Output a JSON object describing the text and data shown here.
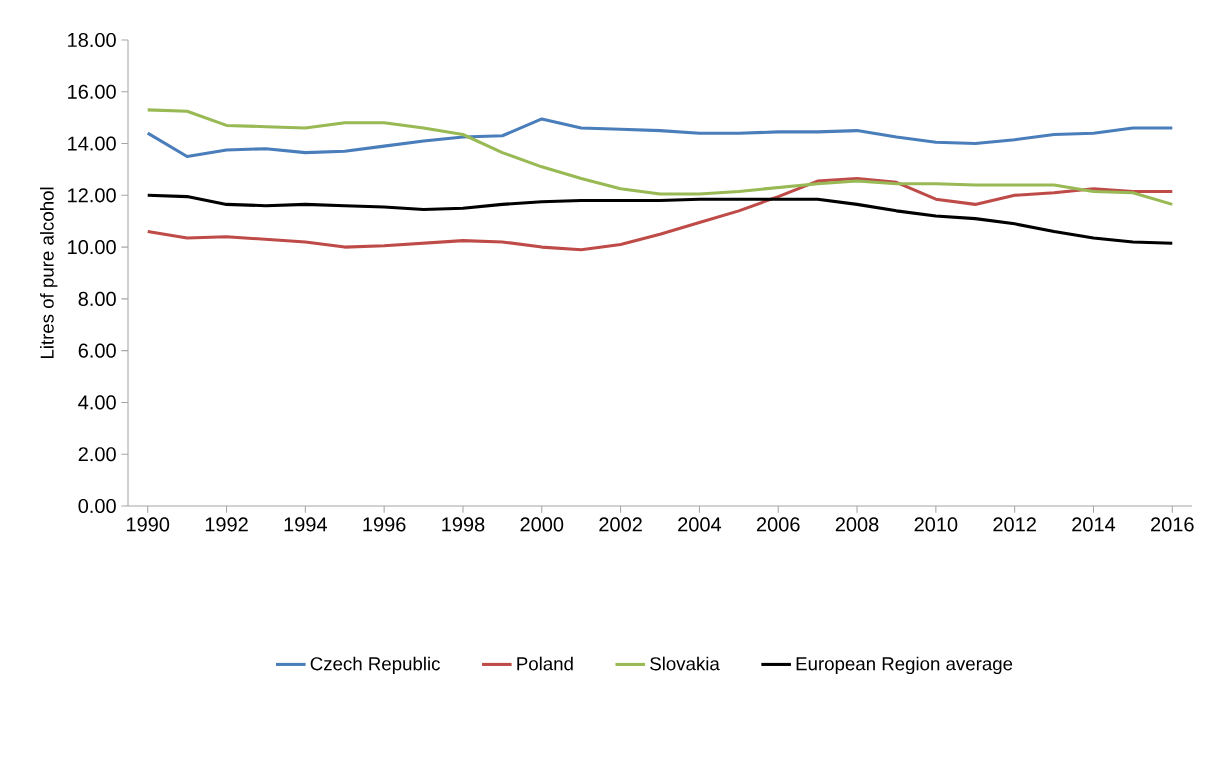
{
  "chart_data": {
    "type": "line",
    "ylabel": "Litres of pure alcohol",
    "x": [
      1990,
      1991,
      1992,
      1993,
      1994,
      1995,
      1996,
      1997,
      1998,
      1999,
      2000,
      2001,
      2002,
      2003,
      2004,
      2005,
      2006,
      2007,
      2008,
      2009,
      2010,
      2011,
      2012,
      2013,
      2014,
      2015,
      2016
    ],
    "series": [
      {
        "name": "Czech Republic",
        "color": "#4a7ebb",
        "values": [
          14.4,
          13.5,
          13.75,
          13.8,
          13.65,
          13.7,
          13.9,
          14.1,
          14.25,
          14.3,
          14.95,
          14.6,
          14.55,
          14.5,
          14.4,
          14.4,
          14.45,
          14.45,
          14.5,
          14.25,
          14.05,
          14.0,
          14.15,
          14.35,
          14.4,
          14.6,
          14.6
        ]
      },
      {
        "name": "Poland",
        "color": "#be4b48",
        "values": [
          10.6,
          10.35,
          10.4,
          10.3,
          10.2,
          10.0,
          10.05,
          10.15,
          10.25,
          10.2,
          10.0,
          9.9,
          10.1,
          10.5,
          10.95,
          11.4,
          11.95,
          12.55,
          12.65,
          12.5,
          11.85,
          11.65,
          12.0,
          12.1,
          12.25,
          12.15,
          12.15
        ]
      },
      {
        "name": "Slovakia",
        "color": "#98b954",
        "values": [
          15.3,
          15.25,
          14.7,
          14.65,
          14.6,
          14.8,
          14.8,
          14.6,
          14.35,
          13.65,
          13.1,
          12.65,
          12.25,
          12.05,
          12.05,
          12.15,
          12.3,
          12.45,
          12.55,
          12.45,
          12.45,
          12.4,
          12.4,
          12.4,
          12.15,
          12.1,
          11.65
        ]
      },
      {
        "name": "European Region average",
        "color": "#000000",
        "values": [
          12.0,
          11.95,
          11.65,
          11.6,
          11.65,
          11.6,
          11.55,
          11.45,
          11.5,
          11.65,
          11.75,
          11.8,
          11.8,
          11.8,
          11.85,
          11.85,
          11.85,
          11.85,
          11.65,
          11.4,
          11.2,
          11.1,
          10.9,
          10.6,
          10.35,
          10.2,
          10.15
        ]
      }
    ],
    "xlim": [
      1989.5,
      2016.5
    ],
    "ylim": [
      0,
      18
    ],
    "xticks": [
      1990,
      1992,
      1994,
      1996,
      1998,
      2000,
      2002,
      2004,
      2006,
      2008,
      2010,
      2012,
      2014,
      2016
    ],
    "yticks": [
      {
        "value": 0,
        "label": "0.00"
      },
      {
        "value": 2,
        "label": "2.00"
      },
      {
        "value": 4,
        "label": "4.00"
      },
      {
        "value": 6,
        "label": "6.00"
      },
      {
        "value": 8,
        "label": "8.00"
      },
      {
        "value": 10,
        "label": "10.00"
      },
      {
        "value": 12,
        "label": "12.00"
      },
      {
        "value": 14,
        "label": "14.00"
      },
      {
        "value": 16,
        "label": "16.00"
      },
      {
        "value": 18,
        "label": "18.00"
      }
    ],
    "legend": "bottom",
    "marker": "none",
    "line_style": "solid"
  }
}
